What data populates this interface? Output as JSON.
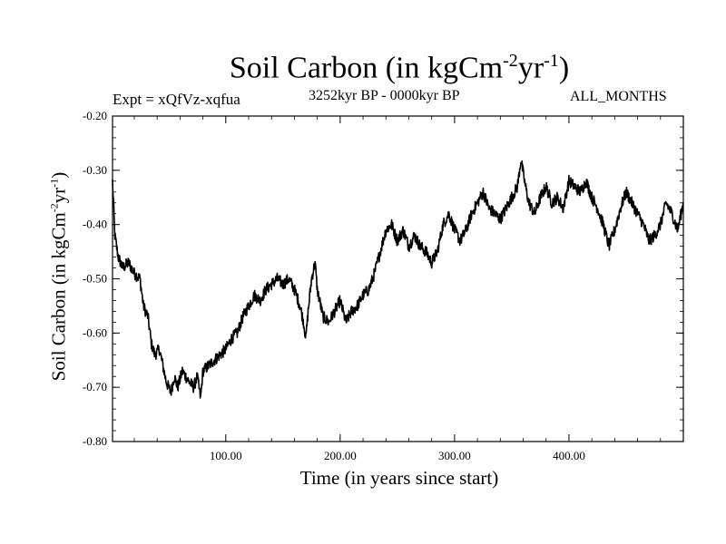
{
  "chart_data": {
    "type": "line",
    "title": {
      "text": "Soil Carbon (in kgCm",
      "sup1": "-2",
      "mid": "yr",
      "sup2": "-1",
      "end": ")"
    },
    "subtitle_left": "Expt = xQfVz-xqfua",
    "subtitle_center": "3252kyr BP - 0000kyr BP",
    "subtitle_right": "ALL_MONTHS",
    "xlabel": "Time (in years since start)",
    "ylabel": {
      "text": "Soil Carbon (in kgCm",
      "sup1": "-2",
      "mid": "yr",
      "sup2": "-1",
      "end": ")"
    },
    "xlim": [
      1,
      500
    ],
    "ylim": [
      -0.8,
      -0.2
    ],
    "xticks": [
      {
        "value": 100,
        "label": "100.00"
      },
      {
        "value": 200,
        "label": "200.00"
      },
      {
        "value": 300,
        "label": "300.00"
      },
      {
        "value": 400,
        "label": "400.00"
      }
    ],
    "yticks": [
      {
        "value": -0.2,
        "label": "-0.20"
      },
      {
        "value": -0.3,
        "label": "-0.30"
      },
      {
        "value": -0.4,
        "label": "-0.40"
      },
      {
        "value": -0.5,
        "label": "-0.50"
      },
      {
        "value": -0.6,
        "label": "-0.60"
      },
      {
        "value": -0.7,
        "label": "-0.70"
      },
      {
        "value": -0.8,
        "label": "-0.80"
      }
    ],
    "series": [
      {
        "name": "soil_carbon",
        "color": "#000000",
        "x": [
          1,
          3,
          6,
          10,
          15,
          20,
          25,
          28,
          32,
          35,
          38,
          42,
          45,
          48,
          52,
          55,
          58,
          62,
          65,
          68,
          72,
          75,
          78,
          80,
          85,
          90,
          95,
          100,
          105,
          110,
          115,
          120,
          125,
          130,
          135,
          140,
          145,
          150,
          155,
          160,
          165,
          168,
          170,
          172,
          175,
          178,
          180,
          185,
          190,
          195,
          200,
          205,
          210,
          215,
          220,
          225,
          230,
          235,
          240,
          245,
          250,
          255,
          260,
          265,
          270,
          275,
          280,
          285,
          290,
          295,
          300,
          305,
          310,
          315,
          320,
          325,
          330,
          335,
          340,
          345,
          350,
          355,
          358,
          362,
          365,
          370,
          375,
          380,
          385,
          390,
          395,
          400,
          405,
          410,
          415,
          420,
          425,
          430,
          435,
          440,
          445,
          450,
          455,
          460,
          465,
          470,
          475,
          480,
          485,
          490,
          495,
          500
        ],
        "values": [
          -0.32,
          -0.42,
          -0.46,
          -0.48,
          -0.47,
          -0.49,
          -0.5,
          -0.55,
          -0.57,
          -0.62,
          -0.64,
          -0.63,
          -0.66,
          -0.69,
          -0.71,
          -0.68,
          -0.7,
          -0.67,
          -0.68,
          -0.69,
          -0.7,
          -0.68,
          -0.72,
          -0.67,
          -0.66,
          -0.65,
          -0.64,
          -0.63,
          -0.61,
          -0.6,
          -0.57,
          -0.55,
          -0.53,
          -0.54,
          -0.52,
          -0.51,
          -0.5,
          -0.51,
          -0.5,
          -0.52,
          -0.55,
          -0.58,
          -0.61,
          -0.56,
          -0.5,
          -0.47,
          -0.52,
          -0.57,
          -0.58,
          -0.56,
          -0.54,
          -0.58,
          -0.56,
          -0.55,
          -0.53,
          -0.52,
          -0.49,
          -0.45,
          -0.41,
          -0.4,
          -0.43,
          -0.41,
          -0.44,
          -0.42,
          -0.44,
          -0.45,
          -0.47,
          -0.45,
          -0.4,
          -0.38,
          -0.41,
          -0.43,
          -0.41,
          -0.38,
          -0.36,
          -0.34,
          -0.37,
          -0.38,
          -0.39,
          -0.37,
          -0.35,
          -0.33,
          -0.28,
          -0.33,
          -0.36,
          -0.38,
          -0.35,
          -0.33,
          -0.36,
          -0.35,
          -0.37,
          -0.32,
          -0.33,
          -0.34,
          -0.32,
          -0.35,
          -0.37,
          -0.4,
          -0.44,
          -0.41,
          -0.37,
          -0.34,
          -0.36,
          -0.38,
          -0.4,
          -0.43,
          -0.42,
          -0.4,
          -0.36,
          -0.38,
          -0.41,
          -0.36
        ]
      }
    ]
  }
}
